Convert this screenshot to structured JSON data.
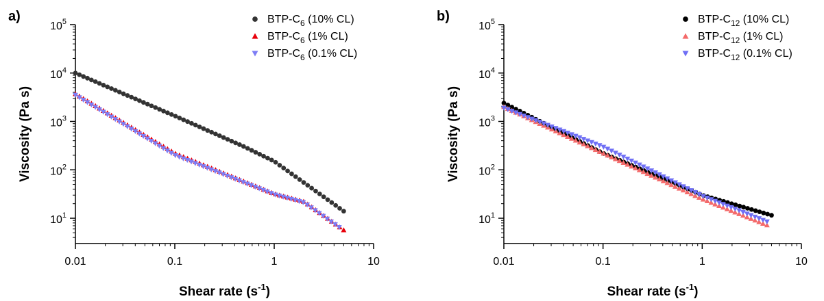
{
  "chart_data": [
    {
      "panel_label": "a)",
      "type": "scatter",
      "xscale": "log",
      "yscale": "log",
      "xlim": [
        0.01,
        10
      ],
      "ylim": [
        3,
        100000
      ],
      "xlabel": {
        "text": "Shear rate (s",
        "sup": "-1",
        "tail": ")"
      },
      "ylabel": "Viscosity (Pa s)",
      "xticks": [
        {
          "value": 0.01,
          "label": "0.01"
        },
        {
          "value": 0.1,
          "label": "0.1"
        },
        {
          "value": 1,
          "label": "1"
        },
        {
          "value": 10,
          "label": "10"
        }
      ],
      "yticks": [
        {
          "value": 10,
          "base": "10",
          "exp": "1"
        },
        {
          "value": 100,
          "base": "10",
          "exp": "2"
        },
        {
          "value": 1000,
          "base": "10",
          "exp": "3"
        },
        {
          "value": 10000,
          "base": "10",
          "exp": "4"
        },
        {
          "value": 100000,
          "base": "10",
          "exp": "5"
        }
      ],
      "legend_position": "top-right",
      "series": [
        {
          "name": "BTP-C6 (10% CL)",
          "legend": {
            "pre": "BTP-C",
            "sub": "6",
            "post": " (10% CL)"
          },
          "marker": "circle",
          "color": "#333333",
          "anchors": [
            [
              0.01,
              10000
            ],
            [
              0.1,
              1300
            ],
            [
              0.5,
              300
            ],
            [
              1,
              150
            ],
            [
              5,
              14
            ]
          ]
        },
        {
          "name": "BTP-C6 (1% CL)",
          "legend": {
            "pre": "BTP-C",
            "sub": "6",
            "post": " (1% CL)"
          },
          "marker": "triangle-up",
          "color": "#e8000b",
          "anchors": [
            [
              0.01,
              3700
            ],
            [
              0.1,
              220
            ],
            [
              1,
              32
            ],
            [
              2,
              22
            ],
            [
              5,
              5.7
            ]
          ]
        },
        {
          "name": "BTP-C6 (0.1% CL)",
          "legend": {
            "pre": "BTP-C",
            "sub": "6",
            "post": " (0.1% CL)"
          },
          "marker": "triangle-down",
          "color": "#7d7df5",
          "anchors": [
            [
              0.01,
              3500
            ],
            [
              0.1,
              200
            ],
            [
              1,
              31
            ],
            [
              2,
              21
            ],
            [
              4.5,
              6.5
            ]
          ]
        }
      ]
    },
    {
      "panel_label": "b)",
      "type": "scatter",
      "xscale": "log",
      "yscale": "log",
      "xlim": [
        0.01,
        10
      ],
      "ylim": [
        3,
        100000
      ],
      "xlabel": {
        "text": "Shear rate (s",
        "sup": "-1",
        "tail": ")"
      },
      "ylabel": "Viscosity (Pa s)",
      "xticks": [
        {
          "value": 0.01,
          "label": "0.01"
        },
        {
          "value": 0.1,
          "label": "0.1"
        },
        {
          "value": 1,
          "label": "1"
        },
        {
          "value": 10,
          "label": "10"
        }
      ],
      "yticks": [
        {
          "value": 10,
          "base": "10",
          "exp": "1"
        },
        {
          "value": 100,
          "base": "10",
          "exp": "2"
        },
        {
          "value": 1000,
          "base": "10",
          "exp": "3"
        },
        {
          "value": 10000,
          "base": "10",
          "exp": "4"
        },
        {
          "value": 100000,
          "base": "10",
          "exp": "5"
        }
      ],
      "legend_position": "top-right",
      "series": [
        {
          "name": "BTP-C12 (10% CL)",
          "legend": {
            "pre": "BTP-C",
            "sub": "12",
            "post": " (10% CL)"
          },
          "marker": "circle",
          "color": "#000000",
          "anchors": [
            [
              0.01,
              2400
            ],
            [
              0.1,
              220
            ],
            [
              1,
              30
            ],
            [
              5,
              11.5
            ]
          ]
        },
        {
          "name": "BTP-C12 (1% CL)",
          "legend": {
            "pre": "BTP-C",
            "sub": "12",
            "post": " (1% CL)"
          },
          "marker": "triangle-up",
          "color": "#f46a6a",
          "anchors": [
            [
              0.01,
              2000
            ],
            [
              0.1,
              220
            ],
            [
              1,
              25
            ],
            [
              4.5,
              7.2
            ]
          ]
        },
        {
          "name": "BTP-C12 (0.1% CL)",
          "legend": {
            "pre": "BTP-C",
            "sub": "12",
            "post": " (0.1% CL)"
          },
          "marker": "triangle-down",
          "color": "#6f6ff5",
          "anchors": [
            [
              0.01,
              1900
            ],
            [
              0.1,
              300
            ],
            [
              1,
              29
            ],
            [
              4.5,
              8.5
            ]
          ]
        }
      ]
    }
  ]
}
